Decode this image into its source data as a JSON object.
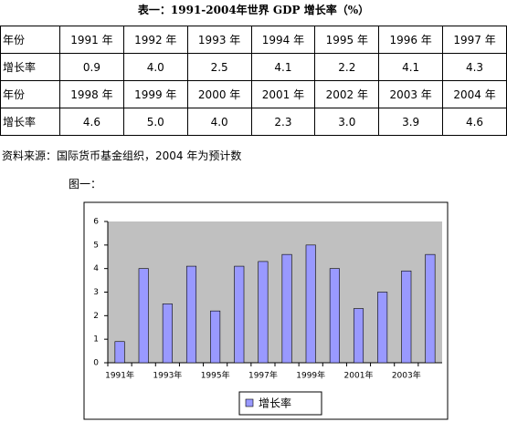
{
  "title": "表一：1991-2004年世界 GDP 增长率（%）",
  "table": {
    "rows": [
      [
        "年份",
        "1991 年",
        "1992 年",
        "1993 年",
        "1994 年",
        "1995 年",
        "1996 年",
        "1997 年"
      ],
      [
        "增长率",
        "0.9",
        "4.0",
        "2.5",
        "4.1",
        "2.2",
        "4.1",
        "4.3"
      ],
      [
        "年份",
        "1998 年",
        "1999 年",
        "2000 年",
        "2001 年",
        "2002 年",
        "2003 年",
        "2004 年"
      ],
      [
        "增长率",
        "4.6",
        "5.0",
        "4.0",
        "2.3",
        "3.0",
        "3.9",
        "4.6"
      ]
    ]
  },
  "source": "资料来源：国际货币基金组织，2004 年为预计数",
  "figure_label": "图一：",
  "chart_data": {
    "type": "bar",
    "categories": [
      "1991年",
      null,
      "1993年",
      null,
      "1995年",
      null,
      "1997年",
      null,
      "1999年",
      null,
      "2001年",
      null,
      "2003年",
      null
    ],
    "series": [
      {
        "name": "增长率",
        "color": "#9999ff",
        "values": [
          0.9,
          4,
          2.5,
          4.1,
          2.2,
          4.1,
          4.3,
          4.6,
          5,
          4,
          2.3,
          3,
          3.9,
          4.6
        ]
      }
    ],
    "ylim": [
      0,
      6
    ],
    "yticks": [
      0,
      1,
      2,
      3,
      4,
      5,
      6
    ],
    "legend": "bottom"
  }
}
